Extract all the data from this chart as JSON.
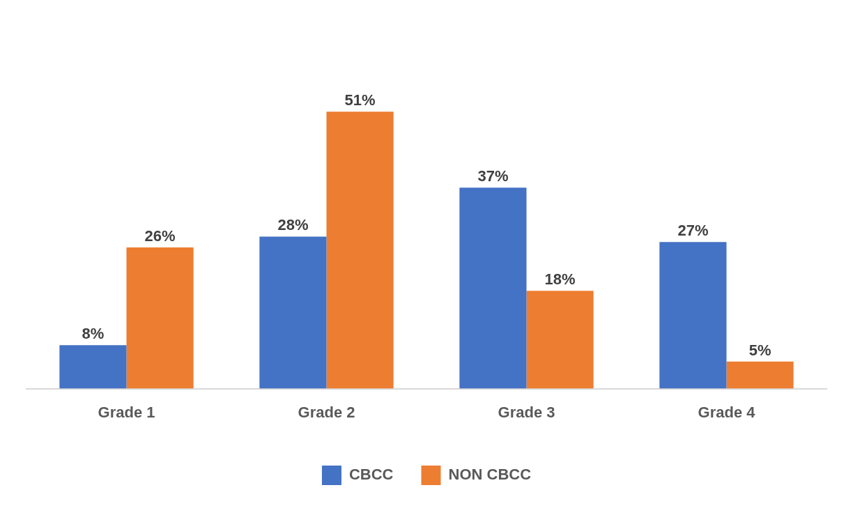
{
  "chart_data": {
    "type": "bar",
    "categories": [
      "Grade 1",
      "Grade 2",
      "Grade 3",
      "Grade 4"
    ],
    "series": [
      {
        "name": "CBCC",
        "color": "#4472c4",
        "values": [
          8,
          28,
          37,
          27
        ],
        "value_labels": [
          "8%",
          "28%",
          "37%",
          "27%"
        ]
      },
      {
        "name": "NON CBCC",
        "color": "#ed7d31",
        "values": [
          26,
          51,
          18,
          5
        ],
        "value_labels": [
          "26%",
          "51%",
          "18%",
          "5%"
        ]
      }
    ],
    "legend": "bottom",
    "grid": false,
    "tick_labels": "x"
  }
}
